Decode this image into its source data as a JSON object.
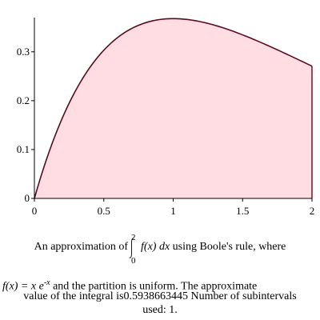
{
  "chart_data": {
    "type": "area",
    "function": "x*exp(-x)",
    "x": [
      0,
      0.1,
      0.2,
      0.3,
      0.4,
      0.5,
      0.6,
      0.7,
      0.8,
      0.9,
      1.0,
      1.1,
      1.2,
      1.3,
      1.4,
      1.5,
      1.6,
      1.7,
      1.8,
      1.9,
      2.0
    ],
    "y": [
      0,
      0.0905,
      0.1637,
      0.2222,
      0.2681,
      0.3033,
      0.3293,
      0.3476,
      0.3595,
      0.3659,
      0.3679,
      0.3662,
      0.3614,
      0.3543,
      0.3452,
      0.3347,
      0.323,
      0.3105,
      0.2975,
      0.2842,
      0.2707
    ],
    "xlim": [
      0,
      2
    ],
    "ylim": [
      0,
      0.37
    ],
    "x_ticks": [
      0,
      0.5,
      1,
      1.5,
      2
    ],
    "x_tick_labels": [
      "0",
      "0.5",
      "1",
      "1.5",
      "2"
    ],
    "y_ticks": [
      0,
      0.1,
      0.2,
      0.3
    ],
    "y_tick_labels": [
      "0",
      "0.1",
      "0.2",
      "0.3"
    ],
    "fill_color": "#ffdde3",
    "line_color": "#5a0a1e"
  },
  "caption": {
    "line1_pre": "An approximation of",
    "integral_upper": "2",
    "integral_lower": "0",
    "integrand": "f(x) dx",
    "line1_post": "using Boole's rule, where",
    "fx_lhs": "f(x) = x e",
    "fx_exp": "-x",
    "line2_post": "and the partition is uniform.  The approximate",
    "line3_pre": "value of the integral is",
    "value": "0.5938663445",
    "line3_post": "Number of subintervals",
    "line4_pre": "used:",
    "subintervals": "1."
  }
}
